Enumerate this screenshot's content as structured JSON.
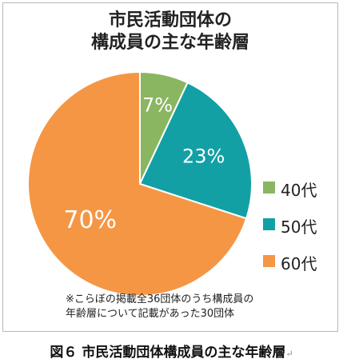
{
  "chart_data": {
    "type": "pie",
    "title_line1": "市民活動団体の",
    "title_line2": "構成員の主な年齢層",
    "categories": [
      "40代",
      "50代",
      "60代"
    ],
    "values": [
      7,
      23,
      70
    ],
    "data_labels": [
      "7%",
      "23%",
      "70%"
    ],
    "colors": [
      "#8ab661",
      "#12a0a5",
      "#f59645"
    ],
    "legend_position": "right",
    "note_line1": "※こらぼの掲載全36団体のうち構成員の",
    "note_line2": "年齢層について記載があった30団体"
  },
  "caption": "図６ 市民活動団体構成員の主な年齢層",
  "caption_mark": "↵"
}
